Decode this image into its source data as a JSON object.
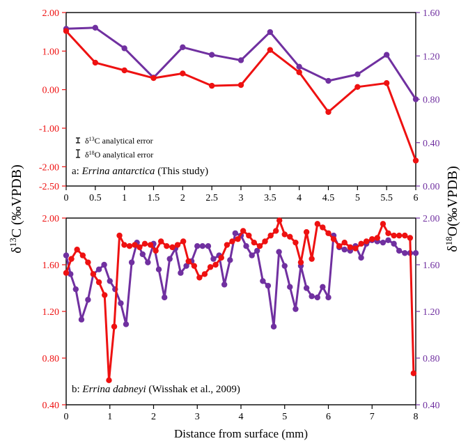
{
  "colors": {
    "c13": "#ee1111",
    "o18": "#7030a0",
    "axis": "#000000"
  },
  "y_label_left": "δ13C (‰VPDB)",
  "y_label_right": "δ18O(‰VPDB)",
  "x_label": "Distance from surface (mm)",
  "legend": {
    "c13_error": "δ13C analytical error",
    "o18_error": "δ18O analytical error"
  },
  "chart_data": [
    {
      "type": "line",
      "panel_label": "a: ",
      "panel_species": "Errina antarctica",
      "panel_suffix": " (This study)",
      "xlim": [
        0,
        6
      ],
      "x_ticks": [
        0,
        0.5,
        1,
        1.5,
        2,
        2.5,
        3,
        3.5,
        4,
        4.5,
        5,
        5.5,
        6
      ],
      "ylim_left": [
        -2.5,
        2.0
      ],
      "ylim_right": [
        0.0,
        1.6
      ],
      "y_ticks_left": [
        "2.00",
        "1.00",
        "0.00",
        "-1.00",
        "-2.00",
        "-2.50"
      ],
      "y_ticks_right": [
        "1.60",
        "1.20",
        "0.80",
        "0.40",
        "0.00"
      ],
      "series": [
        {
          "axis": "left",
          "x": [
            0,
            0.5,
            1,
            1.5,
            2,
            2.5,
            3,
            3.5,
            4,
            4.5,
            5,
            5.5,
            6
          ],
          "values": [
            1.52,
            0.7,
            0.5,
            0.3,
            0.42,
            0.1,
            0.12,
            1.03,
            0.45,
            -0.58,
            0.07,
            0.17,
            -1.84
          ]
        },
        {
          "axis": "right",
          "x": [
            0,
            0.5,
            1,
            1.5,
            2,
            2.5,
            3,
            3.5,
            4,
            4.5,
            5,
            5.5,
            6
          ],
          "values": [
            1.45,
            1.46,
            1.27,
            1.0,
            1.28,
            1.21,
            1.16,
            1.42,
            1.1,
            0.97,
            1.03,
            1.21,
            0.8
          ]
        }
      ]
    },
    {
      "type": "line",
      "panel_label": "b: ",
      "panel_species": "Errina dabneyi",
      "panel_suffix": " (Wisshak et al., 2009)",
      "xlim": [
        0,
        8
      ],
      "x_ticks": [
        0,
        1,
        2,
        3,
        4,
        5,
        6,
        7,
        8
      ],
      "ylim_left": [
        0.4,
        2.0
      ],
      "ylim_right": [
        0.4,
        2.0
      ],
      "y_ticks_left": [
        "2.00",
        "1.60",
        "1.20",
        "0.80",
        "0.40"
      ],
      "y_ticks_right": [
        "2.00",
        "1.60",
        "1.20",
        "0.80",
        "0.40"
      ],
      "series": [
        {
          "axis": "left",
          "x": [
            0.0,
            0.12,
            0.25,
            0.38,
            0.5,
            0.62,
            0.75,
            0.88,
            0.98,
            1.1,
            1.22,
            1.33,
            1.45,
            1.57,
            1.68,
            1.8,
            1.93,
            2.05,
            2.17,
            2.3,
            2.43,
            2.55,
            2.68,
            2.8,
            2.93,
            3.05,
            3.17,
            3.3,
            3.42,
            3.55,
            3.68,
            3.8,
            3.93,
            4.05,
            4.18,
            4.3,
            4.43,
            4.55,
            4.68,
            4.8,
            4.88,
            5.0,
            5.12,
            5.25,
            5.37,
            5.5,
            5.62,
            5.75,
            5.87,
            6.0,
            6.12,
            6.25,
            6.37,
            6.5,
            6.62,
            6.75,
            6.87,
            7.0,
            7.12,
            7.25,
            7.37,
            7.5,
            7.62,
            7.75,
            7.87,
            7.95
          ],
          "values": [
            1.53,
            1.65,
            1.73,
            1.68,
            1.62,
            1.52,
            1.45,
            1.34,
            0.61,
            1.07,
            1.85,
            1.77,
            1.76,
            1.77,
            1.75,
            1.78,
            1.77,
            1.72,
            1.8,
            1.76,
            1.75,
            1.77,
            1.8,
            1.63,
            1.59,
            1.49,
            1.52,
            1.58,
            1.6,
            1.66,
            1.77,
            1.8,
            1.82,
            1.89,
            1.85,
            1.79,
            1.76,
            1.8,
            1.85,
            1.89,
            1.98,
            1.86,
            1.84,
            1.79,
            1.62,
            1.88,
            1.65,
            1.95,
            1.92,
            1.87,
            1.82,
            1.76,
            1.79,
            1.75,
            1.74,
            1.78,
            1.8,
            1.82,
            1.83,
            1.95,
            1.87,
            1.85,
            1.85,
            1.85,
            1.83,
            0.67
          ]
        },
        {
          "axis": "right",
          "x": [
            0.0,
            0.1,
            0.22,
            0.35,
            0.5,
            0.62,
            0.75,
            0.87,
            1.0,
            1.12,
            1.25,
            1.37,
            1.5,
            1.62,
            1.75,
            1.87,
            2.0,
            2.12,
            2.25,
            2.37,
            2.5,
            2.62,
            2.75,
            2.87,
            3.0,
            3.12,
            3.25,
            3.37,
            3.5,
            3.62,
            3.75,
            3.87,
            4.0,
            4.12,
            4.25,
            4.37,
            4.5,
            4.62,
            4.75,
            4.87,
            5.0,
            5.12,
            5.25,
            5.37,
            5.5,
            5.62,
            5.75,
            5.87,
            6.0,
            6.12,
            6.25,
            6.37,
            6.5,
            6.62,
            6.75,
            6.87,
            7.0,
            7.12,
            7.25,
            7.37,
            7.5,
            7.62,
            7.75,
            7.87,
            8.0
          ],
          "values": [
            1.68,
            1.52,
            1.39,
            1.13,
            1.3,
            1.52,
            1.56,
            1.6,
            1.46,
            1.39,
            1.27,
            1.09,
            1.62,
            1.79,
            1.69,
            1.62,
            1.78,
            1.56,
            1.32,
            1.65,
            1.74,
            1.53,
            1.59,
            1.63,
            1.76,
            1.76,
            1.76,
            1.65,
            1.68,
            1.43,
            1.64,
            1.87,
            1.85,
            1.76,
            1.68,
            1.72,
            1.46,
            1.42,
            1.07,
            1.71,
            1.59,
            1.41,
            1.22,
            1.59,
            1.4,
            1.33,
            1.32,
            1.41,
            1.32,
            1.85,
            1.75,
            1.73,
            1.72,
            1.76,
            1.66,
            1.78,
            1.81,
            1.8,
            1.79,
            1.81,
            1.78,
            1.72,
            1.7,
            1.7,
            1.7
          ]
        }
      ]
    }
  ]
}
